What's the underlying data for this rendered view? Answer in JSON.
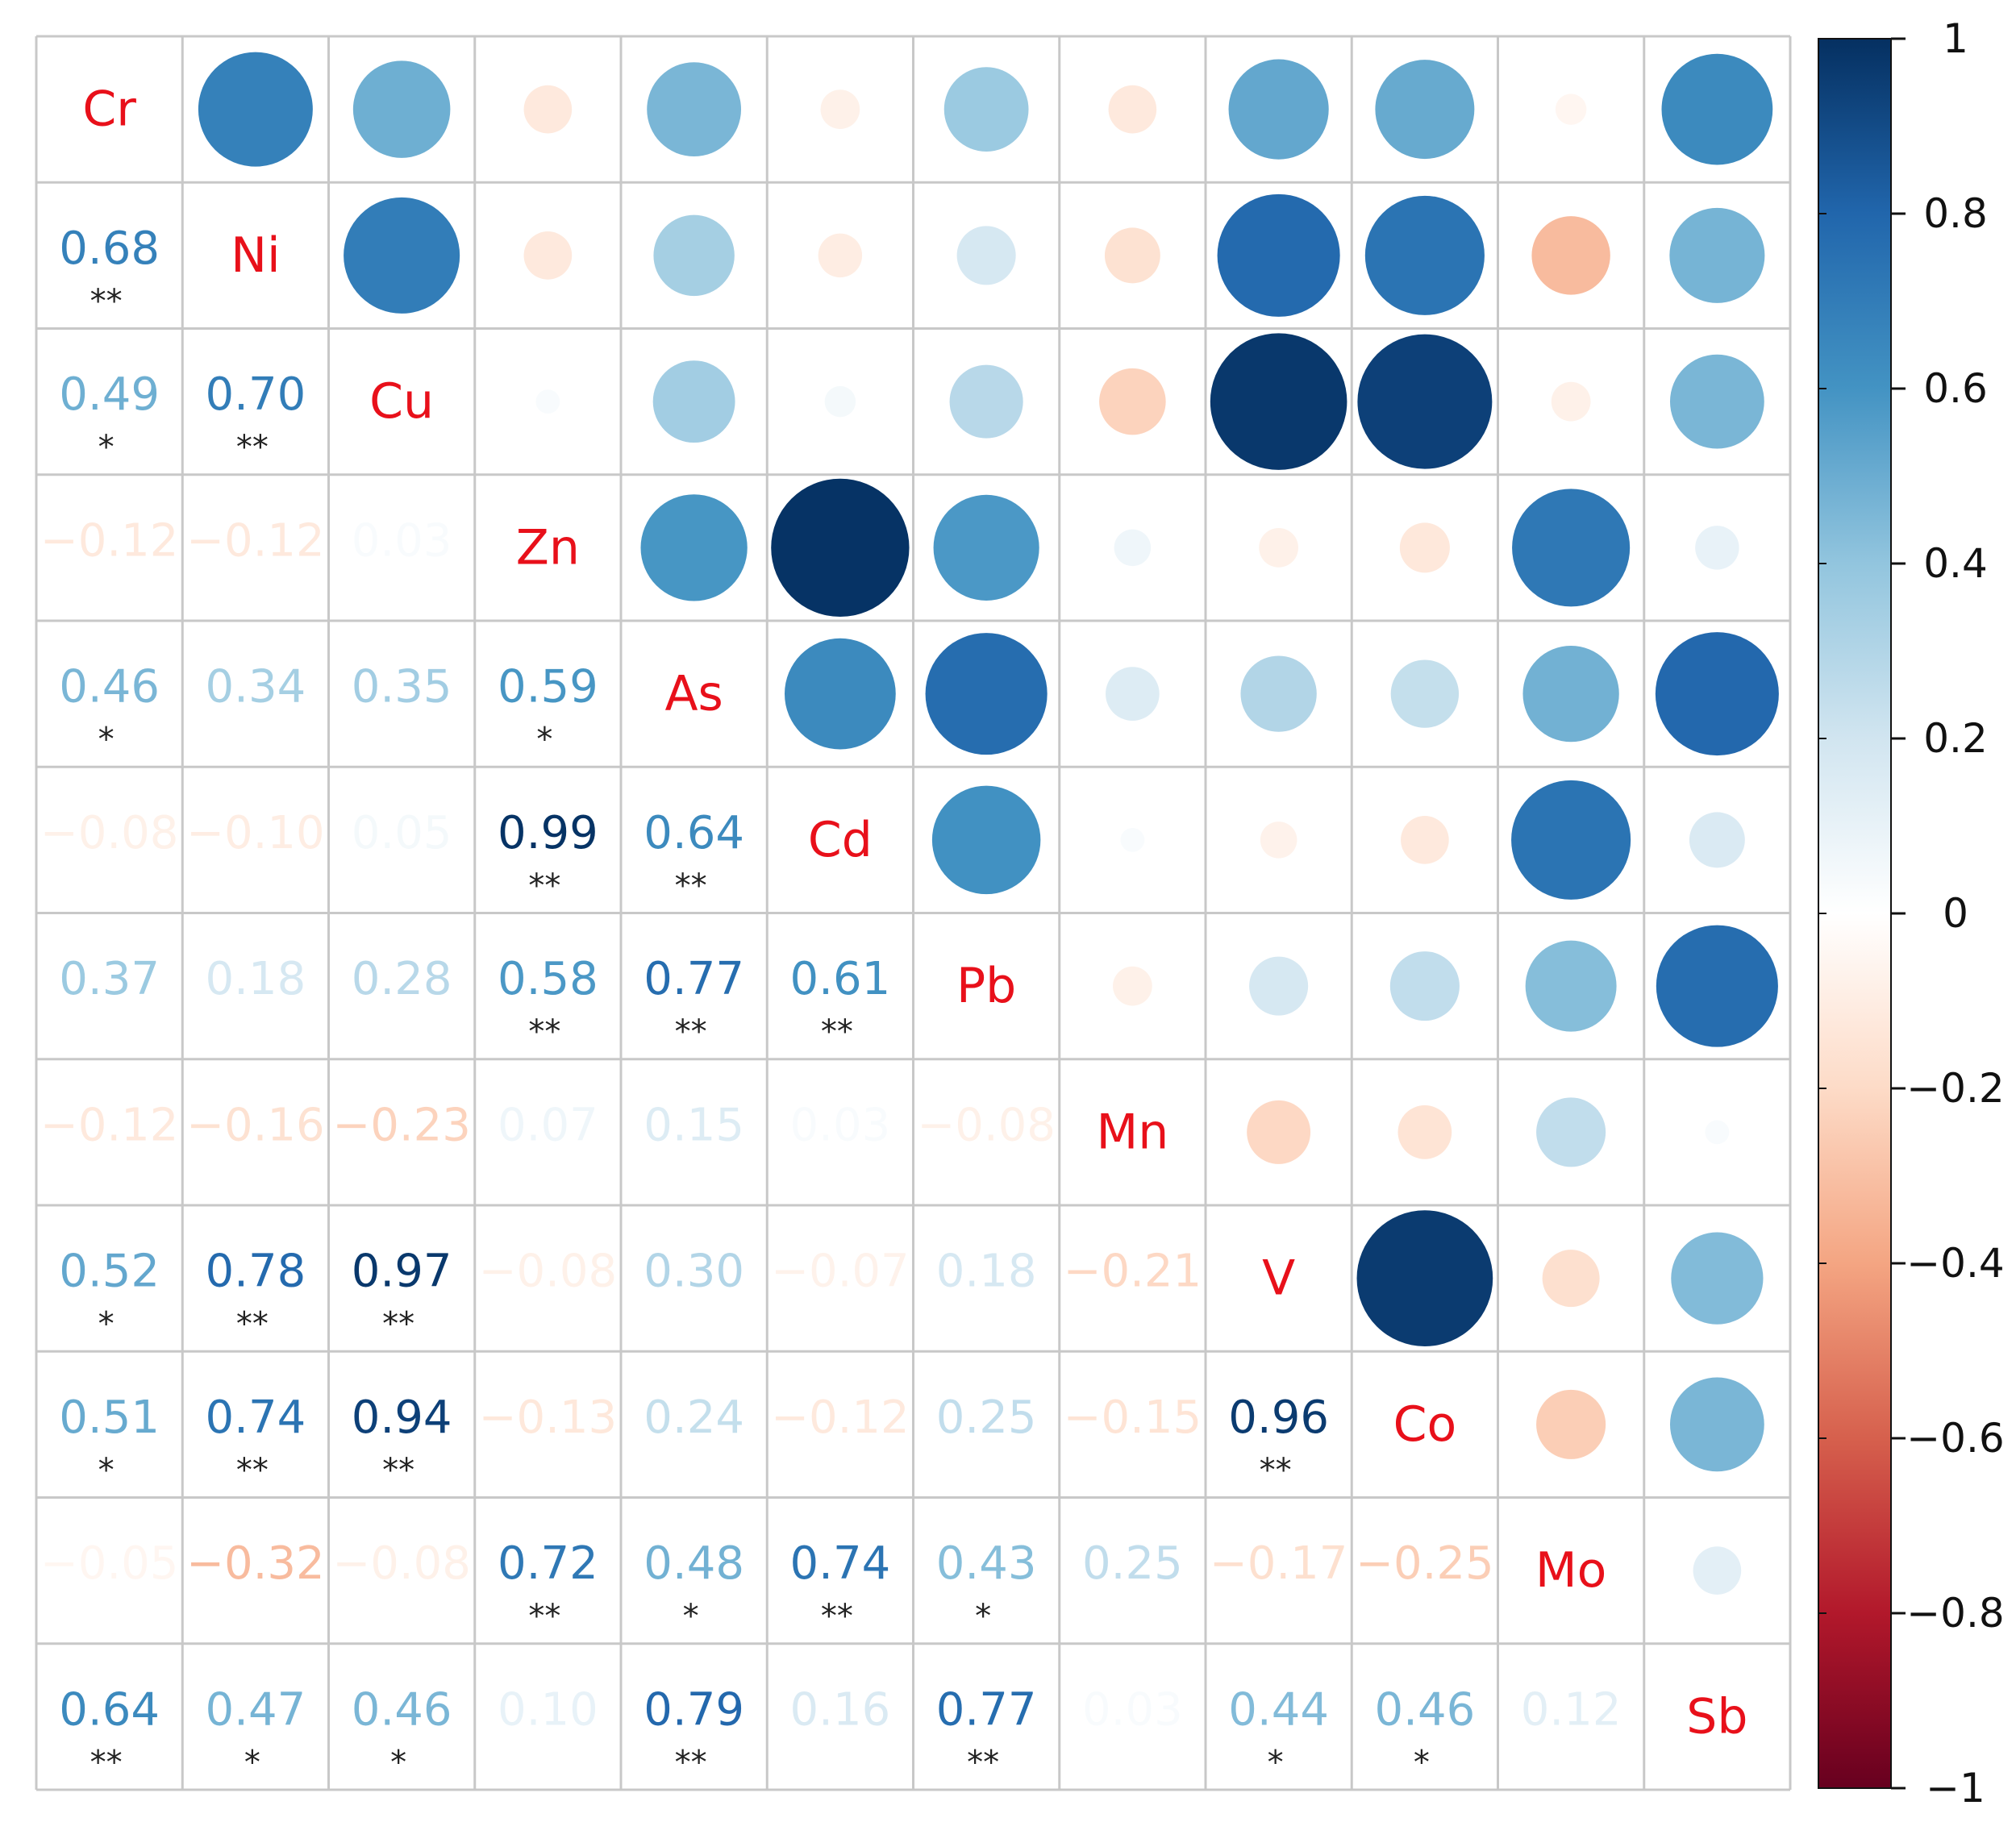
{
  "chart_data": {
    "type": "heatmap",
    "variables": [
      "Cr",
      "Ni",
      "Cu",
      "Zn",
      "As",
      "Cd",
      "Pb",
      "Mn",
      "V",
      "Co",
      "Mo",
      "Sb"
    ],
    "matrix": [
      [
        1,
        0.68,
        0.49,
        -0.12,
        0.46,
        -0.08,
        0.37,
        -0.12,
        0.52,
        0.51,
        -0.05,
        0.64
      ],
      [
        0.68,
        1,
        0.7,
        -0.12,
        0.34,
        -0.1,
        0.18,
        -0.16,
        0.78,
        0.74,
        -0.32,
        0.47
      ],
      [
        0.49,
        0.7,
        1,
        0.03,
        0.35,
        0.05,
        0.28,
        -0.23,
        0.97,
        0.94,
        -0.08,
        0.46
      ],
      [
        -0.12,
        -0.12,
        0.03,
        1,
        0.59,
        0.99,
        0.58,
        0.07,
        -0.08,
        -0.13,
        0.72,
        0.1
      ],
      [
        0.46,
        0.34,
        0.35,
        0.59,
        1,
        0.64,
        0.77,
        0.15,
        0.3,
        0.24,
        0.48,
        0.79
      ],
      [
        -0.08,
        -0.1,
        0.05,
        0.99,
        0.64,
        1,
        0.61,
        0.03,
        -0.07,
        -0.12,
        0.74,
        0.16
      ],
      [
        0.37,
        0.18,
        0.28,
        0.58,
        0.77,
        0.61,
        1,
        -0.08,
        0.18,
        0.25,
        0.43,
        0.77
      ],
      [
        -0.12,
        -0.16,
        -0.23,
        0.07,
        0.15,
        0.03,
        -0.08,
        1,
        -0.21,
        -0.15,
        0.25,
        0.03
      ],
      [
        0.52,
        0.78,
        0.97,
        -0.08,
        0.3,
        -0.07,
        0.18,
        -0.21,
        1,
        0.96,
        -0.17,
        0.44
      ],
      [
        0.51,
        0.74,
        0.94,
        -0.13,
        0.24,
        -0.12,
        0.25,
        -0.15,
        0.96,
        1,
        -0.25,
        0.46
      ],
      [
        -0.05,
        -0.32,
        -0.08,
        0.72,
        0.48,
        0.74,
        0.43,
        0.25,
        -0.17,
        -0.25,
        1,
        0.12
      ],
      [
        0.64,
        0.47,
        0.46,
        0.1,
        0.79,
        0.16,
        0.77,
        0.03,
        0.44,
        0.46,
        0.12,
        1
      ]
    ],
    "lower_triangle_labels": [
      [],
      [
        "0.68"
      ],
      [
        "0.49",
        "0.70"
      ],
      [
        "−0.12",
        "−0.12",
        "0.03"
      ],
      [
        "0.46",
        "0.34",
        "0.35",
        "0.59"
      ],
      [
        "−0.08",
        "−0.10",
        "0.05",
        "0.99",
        "0.64"
      ],
      [
        "0.37",
        "0.18",
        "0.28",
        "0.58",
        "0.77",
        "0.61"
      ],
      [
        "−0.12",
        "−0.16",
        "−0.23",
        "0.07",
        "0.15",
        "0.03",
        "−0.08"
      ],
      [
        "0.52",
        "0.78",
        "0.97",
        "−0.08",
        "0.30",
        "−0.07",
        "0.18",
        "−0.21"
      ],
      [
        "0.51",
        "0.74",
        "0.94",
        "−0.13",
        "0.24",
        "−0.12",
        "0.25",
        "−0.15",
        "0.96"
      ],
      [
        "−0.05",
        "−0.32",
        "−0.08",
        "0.72",
        "0.48",
        "0.74",
        "0.43",
        "0.25",
        "−0.17",
        "−0.25"
      ],
      [
        "0.64",
        "0.47",
        "0.46",
        "0.10",
        "0.79",
        "0.16",
        "0.77",
        "0.03",
        "0.44",
        "0.46",
        "0.12"
      ]
    ],
    "significance": [
      [],
      [
        "**"
      ],
      [
        "*",
        "**"
      ],
      [
        "",
        "",
        ""
      ],
      [
        "*",
        "",
        "",
        "*"
      ],
      [
        "",
        "",
        "",
        "**",
        "**"
      ],
      [
        "",
        "",
        "",
        "**",
        "**",
        "**"
      ],
      [
        "",
        "",
        "",
        "",
        "",
        "",
        ""
      ],
      [
        "*",
        "**",
        "**",
        "",
        "",
        "",
        "",
        ""
      ],
      [
        "*",
        "**",
        "**",
        "",
        "",
        "",
        "",
        "",
        "**"
      ],
      [
        "",
        "",
        "",
        "**",
        "*",
        "**",
        "*",
        "",
        "",
        ""
      ],
      [
        "**",
        "*",
        "*",
        "",
        "**",
        "",
        "**",
        "",
        "*",
        "*",
        ""
      ]
    ],
    "upper_triangle": "circles (size and color encode coefficient)",
    "colorbar": {
      "range": [
        -1,
        1
      ],
      "ticks": [
        1,
        0.8,
        0.6,
        0.4,
        0.2,
        0,
        -0.2,
        -0.4,
        -0.6,
        -0.8,
        -1
      ],
      "tick_labels": [
        "1",
        "0.8",
        "0.6",
        "0.4",
        "0.2",
        "0",
        "−0.2",
        "−0.4",
        "−0.6",
        "−0.8",
        "−1"
      ],
      "colors": [
        "#67001F",
        "#B2182B",
        "#D6604D",
        "#F4A582",
        "#FDDBC7",
        "#FFFFFF",
        "#D1E5F0",
        "#92C5DE",
        "#4393C3",
        "#2166AC",
        "#053061"
      ]
    },
    "diagonal_label_color": "#E8101A",
    "grid_color": "#C8C8C8",
    "title": "",
    "xlabel": "",
    "ylabel": ""
  }
}
